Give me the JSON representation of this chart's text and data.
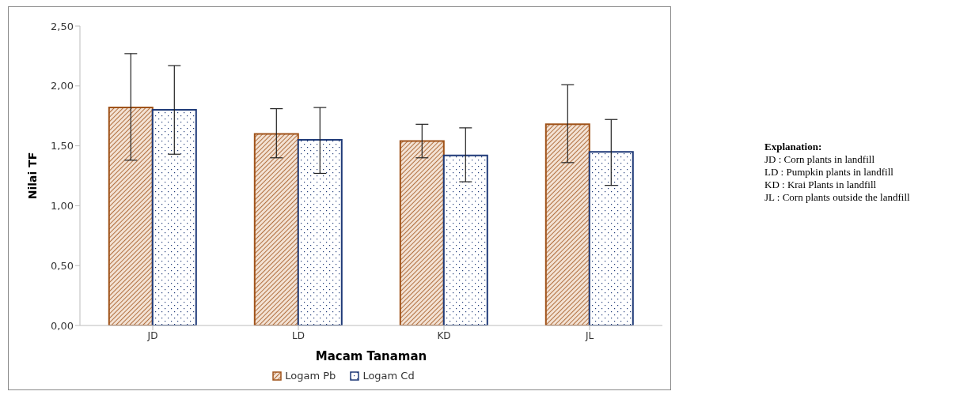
{
  "chart_data": {
    "type": "bar",
    "xlabel": "Macam Tanaman",
    "ylabel": "Nilai TF",
    "categories": [
      "JD",
      "LD",
      "KD",
      "JL"
    ],
    "series": [
      {
        "name": "Logam Pb",
        "color": "#a0531a",
        "values": [
          1.82,
          1.6,
          1.54,
          1.68
        ],
        "errors": [
          [
            1.38,
            2.27
          ],
          [
            1.4,
            1.81
          ],
          [
            1.4,
            1.68
          ],
          [
            1.36,
            2.01
          ]
        ]
      },
      {
        "name": "Logam Cd",
        "color": "#1f3a78",
        "values": [
          1.8,
          1.55,
          1.42,
          1.45
        ],
        "errors": [
          [
            1.43,
            2.17
          ],
          [
            1.27,
            1.82
          ],
          [
            1.2,
            1.65
          ],
          [
            1.17,
            1.72
          ]
        ]
      }
    ],
    "ylim": [
      0,
      2.5
    ],
    "yticks": [
      {
        "value": 0,
        "label": "0,00"
      },
      {
        "value": 0.5,
        "label": "0,50"
      },
      {
        "value": 1,
        "label": "1,00"
      },
      {
        "value": 1.5,
        "label": "1,50"
      },
      {
        "value": 2,
        "label": "2,00"
      },
      {
        "value": 2.5,
        "label": "2,50"
      }
    ],
    "grid": false,
    "legend": "bottom",
    "annotations": [
      "Explanation:",
      "JD : Corn plants in landfill",
      "LD : Pumpkin plants in landfill",
      "KD : Krai Plants in landfill",
      "JL : Corn plants outside the landfill"
    ]
  }
}
